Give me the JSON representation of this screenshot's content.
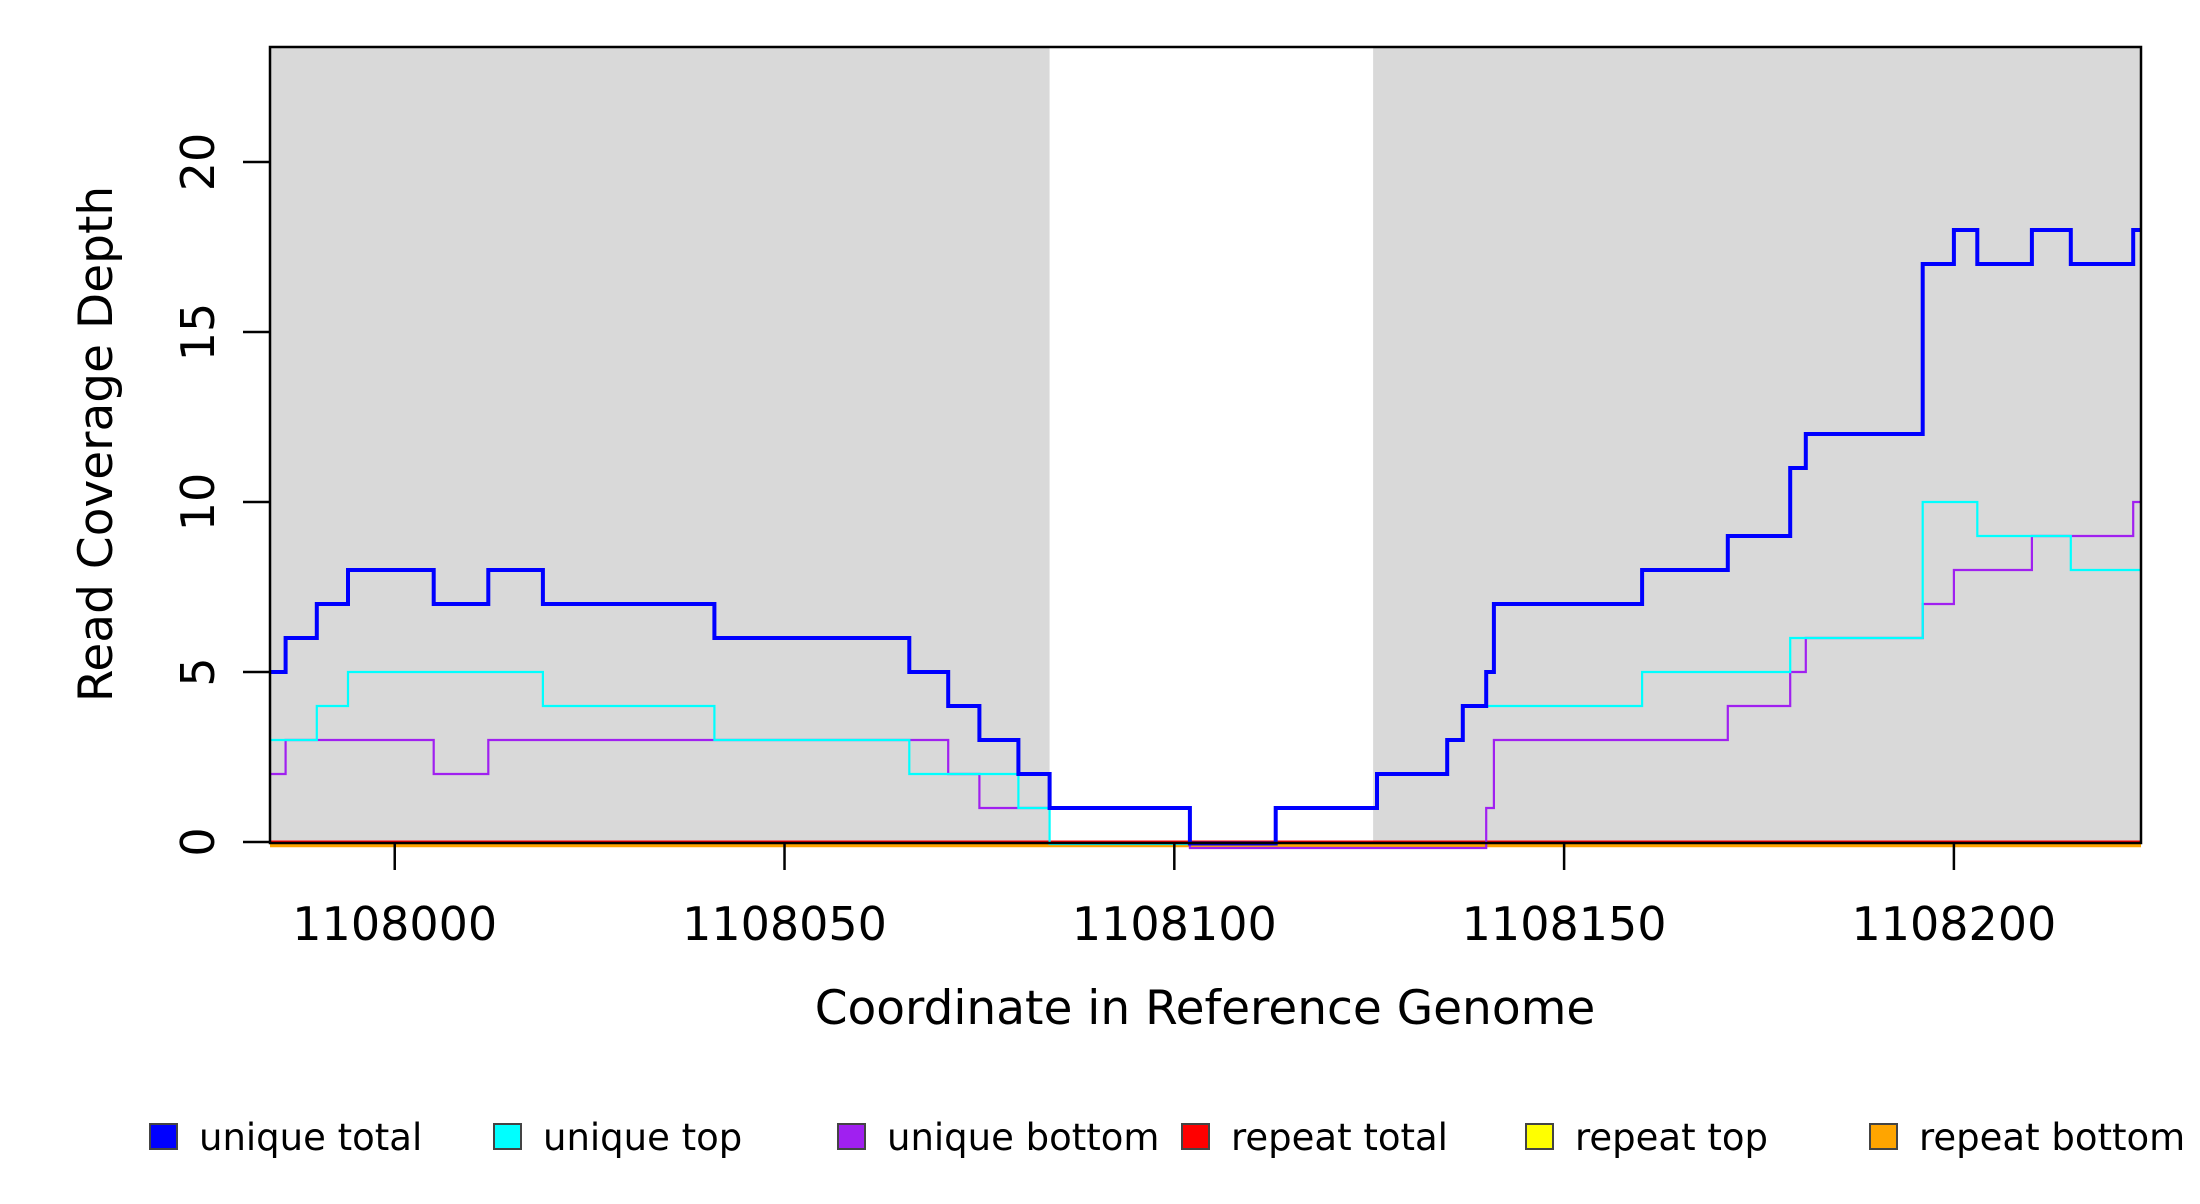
{
  "figure": {
    "xlabel": "Coordinate in Reference Genome",
    "ylabel": "Read Coverage Depth"
  },
  "chart_data": {
    "type": "line",
    "step": true,
    "title": "",
    "xlabel": "Coordinate in Reference Genome",
    "ylabel": "Read Coverage Depth",
    "xlim": [
      1107984,
      1108224
    ],
    "ylim": [
      0,
      23.4
    ],
    "grid": "off",
    "legend_position": "bottom",
    "x_ticks": [
      {
        "value": 1108000,
        "label": "1108000"
      },
      {
        "value": 1108050,
        "label": "1108050"
      },
      {
        "value": 1108100,
        "label": "1108100"
      },
      {
        "value": 1108150,
        "label": "1108150"
      },
      {
        "value": 1108200,
        "label": "1108200"
      }
    ],
    "y_ticks": [
      {
        "value": 0,
        "label": "0"
      },
      {
        "value": 5,
        "label": "5"
      },
      {
        "value": 10,
        "label": "10"
      },
      {
        "value": 15,
        "label": "15"
      },
      {
        "value": 20,
        "label": "20"
      }
    ],
    "shaded_regions": [
      {
        "x0": 1107984,
        "x1": 1108084,
        "color": "#D9D9D9"
      },
      {
        "x0": 1108125.5,
        "x1": 1108224,
        "color": "#D9D9D9"
      }
    ],
    "series": [
      {
        "name": "unique-total",
        "label": "unique total",
        "color": "#0000FF",
        "line_width": 4,
        "zero_line_y": 843.5,
        "points": [
          [
            1107984,
            5
          ],
          [
            1107986,
            6
          ],
          [
            1107990,
            7
          ],
          [
            1107994,
            8
          ],
          [
            1108005,
            7
          ],
          [
            1108012,
            8
          ],
          [
            1108019,
            7
          ],
          [
            1108041,
            6
          ],
          [
            1108066,
            5
          ],
          [
            1108071,
            4
          ],
          [
            1108075,
            3
          ],
          [
            1108080,
            2
          ],
          [
            1108084,
            1
          ],
          [
            1108102,
            0
          ],
          [
            1108113,
            1
          ],
          [
            1108126,
            2
          ],
          [
            1108135,
            3
          ],
          [
            1108137,
            4
          ],
          [
            1108140,
            5
          ],
          [
            1108141,
            7
          ],
          [
            1108160,
            8
          ],
          [
            1108171,
            9
          ],
          [
            1108179,
            11
          ],
          [
            1108181,
            12
          ],
          [
            1108196,
            17
          ],
          [
            1108200,
            18
          ],
          [
            1108203,
            17
          ],
          [
            1108210,
            18
          ],
          [
            1108215,
            17
          ],
          [
            1108223,
            18
          ]
        ]
      },
      {
        "name": "unique-top",
        "label": "unique top",
        "color": "#00FFFF",
        "line_width": 2.2,
        "zero_line_y": 844,
        "points": [
          [
            1107984,
            3
          ],
          [
            1107990,
            4
          ],
          [
            1107994,
            5
          ],
          [
            1108019,
            4
          ],
          [
            1108041,
            3
          ],
          [
            1108066,
            2
          ],
          [
            1108080,
            1
          ],
          [
            1108084,
            0
          ],
          [
            1108113,
            1
          ],
          [
            1108126,
            2
          ],
          [
            1108135,
            3
          ],
          [
            1108137,
            4
          ],
          [
            1108160,
            5
          ],
          [
            1108179,
            6
          ],
          [
            1108196,
            10
          ],
          [
            1108203,
            9
          ],
          [
            1108215,
            8
          ]
        ]
      },
      {
        "name": "unique-bottom",
        "label": "unique bottom",
        "color": "#A020F0",
        "line_width": 2.2,
        "zero_line_y": 848,
        "points": [
          [
            1107984,
            2
          ],
          [
            1107986,
            3
          ],
          [
            1108005,
            2
          ],
          [
            1108012,
            3
          ],
          [
            1108071,
            2
          ],
          [
            1108075,
            1
          ],
          [
            1108102,
            0
          ],
          [
            1108140,
            1
          ],
          [
            1108141,
            3
          ],
          [
            1108171,
            4
          ],
          [
            1108179,
            5
          ],
          [
            1108181,
            6
          ],
          [
            1108196,
            7
          ],
          [
            1108200,
            8
          ],
          [
            1108210,
            9
          ],
          [
            1108223,
            10
          ]
        ]
      },
      {
        "name": "repeat-total",
        "label": "repeat total",
        "color": "#FF0000",
        "line_width": 2,
        "zero_line_y": 841.5,
        "points": [
          [
            1107984,
            0
          ]
        ]
      },
      {
        "name": "repeat-top",
        "label": "repeat top",
        "color": "#FFFF00",
        "line_width": 2,
        "zero_line_y": 843,
        "points": [
          [
            1107984,
            0
          ]
        ]
      },
      {
        "name": "repeat-bottom",
        "label": "repeat bottom",
        "color": "#FFA500",
        "line_width": 4.5,
        "zero_line_y": 845,
        "points": [
          [
            1107984,
            0
          ]
        ]
      }
    ],
    "draw_order": [
      "repeat-total",
      "repeat-top",
      "repeat-bottom",
      "unique-bottom",
      "unique-top",
      "unique-total"
    ]
  }
}
